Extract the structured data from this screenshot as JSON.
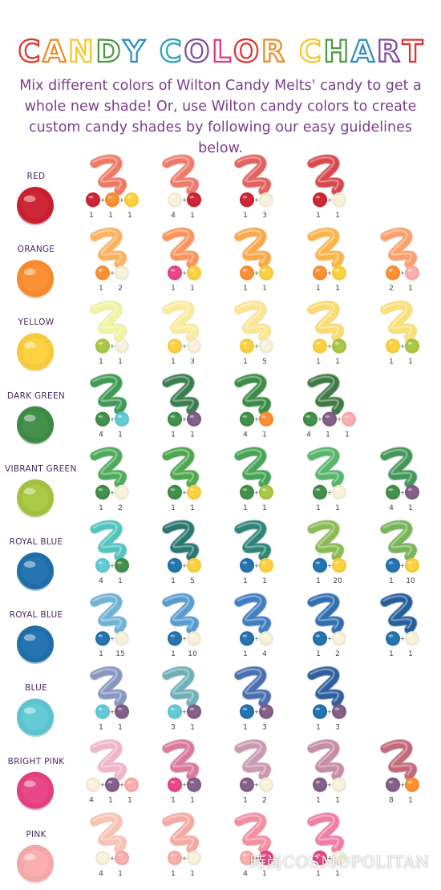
{
  "title": {
    "words": [
      "CANDY",
      "COLOR",
      "CHART"
    ],
    "letter_colors": [
      "#e2312f",
      "#f08a23",
      "#f5c62a",
      "#4a9a42",
      "#2d8cc4",
      "#27a5b8",
      "#7d4e9e",
      "#e6347d",
      "#e2312f",
      "#f08a23",
      "#f5c62a",
      "#4a9a42",
      "#2d8cc4",
      "#7d4e9e"
    ]
  },
  "subtitle": "Mix different colors of Wilton Candy Melts' candy to get a whole new shade! Or, use Wilton candy colors to create custom candy shades by following our easy guidelines below.",
  "colors": {
    "red": "#c8202f",
    "orange": "#f58a2e",
    "yellow": "#f8c93b",
    "cream": "#f1ead2",
    "dkgreen": "#3d8a45",
    "vgreen": "#a2c23f",
    "royal": "#1f6ea8",
    "blue": "#5cc3cf",
    "purple": "#7d5a80",
    "bpink": "#e0417f",
    "pink": "#f3a7a7"
  },
  "rows": [
    {
      "label": "RED",
      "color": "red",
      "mixes": [
        {
          "swatch": "#ef7a63",
          "ingredients": [
            {
              "color": "red",
              "parts": "1"
            },
            {
              "color": "orange",
              "parts": "1"
            },
            {
              "color": "yellow",
              "parts": "1"
            }
          ]
        },
        {
          "swatch": "#ec7b6b",
          "ingredients": [
            {
              "color": "cream",
              "parts": "4"
            },
            {
              "color": "red",
              "parts": "1"
            }
          ]
        },
        {
          "swatch": "#e4615c",
          "ingredients": [
            {
              "color": "red",
              "parts": "1"
            },
            {
              "color": "cream",
              "parts": "3"
            }
          ]
        },
        {
          "swatch": "#d8474c",
          "ingredients": [
            {
              "color": "red",
              "parts": "1"
            },
            {
              "color": "cream",
              "parts": "1"
            }
          ]
        }
      ]
    },
    {
      "label": "ORANGE",
      "color": "orange",
      "mixes": [
        {
          "swatch": "#fbb15e",
          "ingredients": [
            {
              "color": "orange",
              "parts": "1"
            },
            {
              "color": "cream",
              "parts": "2"
            }
          ]
        },
        {
          "swatch": "#f8955a",
          "ingredients": [
            {
              "color": "bpink",
              "parts": "1"
            },
            {
              "color": "yellow",
              "parts": "1"
            }
          ]
        },
        {
          "swatch": "#f9a94a",
          "ingredients": [
            {
              "color": "orange",
              "parts": "1"
            },
            {
              "color": "yellow",
              "parts": "1"
            }
          ]
        },
        {
          "swatch": "#fab54a",
          "ingredients": [
            {
              "color": "orange",
              "parts": "1"
            },
            {
              "color": "yellow",
              "parts": "1"
            }
          ]
        },
        {
          "swatch": "#f9a06a",
          "ingredients": [
            {
              "color": "orange",
              "parts": "2"
            },
            {
              "color": "pink",
              "parts": "1"
            }
          ]
        }
      ]
    },
    {
      "label": "YELLOW",
      "color": "yellow",
      "mixes": [
        {
          "swatch": "#f1f3a1",
          "ingredients": [
            {
              "color": "vgreen",
              "parts": "1"
            },
            {
              "color": "cream",
              "parts": "1"
            }
          ]
        },
        {
          "swatch": "#fbeb9c",
          "ingredients": [
            {
              "color": "yellow",
              "parts": "1"
            },
            {
              "color": "cream",
              "parts": "3"
            }
          ]
        },
        {
          "swatch": "#fbe692",
          "ingredients": [
            {
              "color": "yellow",
              "parts": "1"
            },
            {
              "color": "cream",
              "parts": "5"
            }
          ]
        },
        {
          "swatch": "#f9dc71",
          "ingredients": [
            {
              "color": "yellow",
              "parts": "1"
            },
            {
              "color": "vgreen",
              "parts": "1"
            }
          ]
        },
        {
          "swatch": "#f9e178",
          "ingredients": [
            {
              "color": "yellow",
              "parts": "1"
            },
            {
              "color": "vgreen",
              "parts": "1"
            }
          ]
        }
      ]
    },
    {
      "label": "DARK GREEN",
      "color": "dkgreen",
      "mixes": [
        {
          "swatch": "#3f9a55",
          "ingredients": [
            {
              "color": "dkgreen",
              "parts": "4"
            },
            {
              "color": "blue",
              "parts": "1"
            }
          ]
        },
        {
          "swatch": "#3a7d4f",
          "ingredients": [
            {
              "color": "dkgreen",
              "parts": "1"
            },
            {
              "color": "purple",
              "parts": "1"
            }
          ]
        },
        {
          "swatch": "#3b8c46",
          "ingredients": [
            {
              "color": "dkgreen",
              "parts": "4"
            },
            {
              "color": "orange",
              "parts": "1"
            }
          ]
        },
        {
          "swatch": "#3f7a44",
          "ingredients": [
            {
              "color": "dkgreen",
              "parts": "4"
            },
            {
              "color": "purple",
              "parts": "1"
            },
            {
              "color": "pink",
              "parts": "1"
            }
          ]
        }
      ]
    },
    {
      "label": "VIBRANT GREEN",
      "color": "vgreen",
      "mixes": [
        {
          "swatch": "#4faa5a",
          "ingredients": [
            {
              "color": "dkgreen",
              "parts": "1"
            },
            {
              "color": "cream",
              "parts": "2"
            }
          ]
        },
        {
          "swatch": "#4ea74c",
          "ingredients": [
            {
              "color": "dkgreen",
              "parts": "1"
            },
            {
              "color": "yellow",
              "parts": "1"
            }
          ]
        },
        {
          "swatch": "#46a456",
          "ingredients": [
            {
              "color": "dkgreen",
              "parts": "1"
            },
            {
              "color": "vgreen",
              "parts": "1"
            }
          ]
        },
        {
          "swatch": "#57b56c",
          "ingredients": [
            {
              "color": "dkgreen",
              "parts": "1"
            },
            {
              "color": "cream",
              "parts": "1"
            }
          ]
        },
        {
          "swatch": "#44975a",
          "ingredients": [
            {
              "color": "dkgreen",
              "parts": "4"
            },
            {
              "color": "purple",
              "parts": "1"
            }
          ]
        }
      ]
    },
    {
      "label": "ROYAL BLUE",
      "color": "royal",
      "mixes": [
        {
          "swatch": "#52c4bd",
          "ingredients": [
            {
              "color": "blue",
              "parts": "4"
            },
            {
              "color": "dkgreen",
              "parts": "1"
            }
          ]
        },
        {
          "swatch": "#2a7670",
          "ingredients": [
            {
              "color": "royal",
              "parts": "1"
            },
            {
              "color": "yellow",
              "parts": "5"
            }
          ]
        },
        {
          "swatch": "#2d8577",
          "ingredients": [
            {
              "color": "royal",
              "parts": "1"
            },
            {
              "color": "yellow",
              "parts": "1"
            }
          ]
        },
        {
          "swatch": "#8bbb55",
          "ingredients": [
            {
              "color": "royal",
              "parts": "1"
            },
            {
              "color": "yellow",
              "parts": "20"
            }
          ]
        },
        {
          "swatch": "#78b45a",
          "ingredients": [
            {
              "color": "royal",
              "parts": "1"
            },
            {
              "color": "yellow",
              "parts": "10"
            }
          ]
        }
      ]
    },
    {
      "label": "ROYAL BLUE",
      "color": "royal",
      "mixes": [
        {
          "swatch": "#6fb2d6",
          "ingredients": [
            {
              "color": "royal",
              "parts": "1"
            },
            {
              "color": "cream",
              "parts": "15"
            }
          ]
        },
        {
          "swatch": "#5a9ccf",
          "ingredients": [
            {
              "color": "royal",
              "parts": "1"
            },
            {
              "color": "cream",
              "parts": "10"
            }
          ]
        },
        {
          "swatch": "#3f7ec0",
          "ingredients": [
            {
              "color": "royal",
              "parts": "1"
            },
            {
              "color": "cream",
              "parts": "4"
            }
          ]
        },
        {
          "swatch": "#2f6fb0",
          "ingredients": [
            {
              "color": "royal",
              "parts": "1"
            },
            {
              "color": "cream",
              "parts": "2"
            }
          ]
        },
        {
          "swatch": "#245f9c",
          "ingredients": [
            {
              "color": "royal",
              "parts": "1"
            },
            {
              "color": "cream",
              "parts": "1"
            }
          ]
        }
      ]
    },
    {
      "label": "BLUE",
      "color": "blue",
      "mixes": [
        {
          "swatch": "#8797c2",
          "ingredients": [
            {
              "color": "blue",
              "parts": "1"
            },
            {
              "color": "purple",
              "parts": "1"
            }
          ]
        },
        {
          "swatch": "#6fb0b8",
          "ingredients": [
            {
              "color": "blue",
              "parts": "3"
            },
            {
              "color": "purple",
              "parts": "1"
            }
          ]
        },
        {
          "swatch": "#4a6fb0",
          "ingredients": [
            {
              "color": "royal",
              "parts": "1"
            },
            {
              "color": "purple",
              "parts": "3"
            }
          ]
        },
        {
          "swatch": "#2f5f9e",
          "ingredients": [
            {
              "color": "royal",
              "parts": "1"
            },
            {
              "color": "purple",
              "parts": "3"
            }
          ]
        }
      ]
    },
    {
      "label": "BRIGHT PINK",
      "color": "bpink",
      "mixes": [
        {
          "swatch": "#f1b6c8",
          "ingredients": [
            {
              "color": "cream",
              "parts": "4"
            },
            {
              "color": "purple",
              "parts": "1"
            },
            {
              "color": "pink",
              "parts": "1"
            }
          ]
        },
        {
          "swatch": "#d9799c",
          "ingredients": [
            {
              "color": "bpink",
              "parts": "1"
            },
            {
              "color": "purple",
              "parts": "1"
            }
          ]
        },
        {
          "swatch": "#c99ab2",
          "ingredients": [
            {
              "color": "purple",
              "parts": "1"
            },
            {
              "color": "cream",
              "parts": "2"
            }
          ]
        },
        {
          "swatch": "#c68ba5",
          "ingredients": [
            {
              "color": "purple",
              "parts": "1"
            },
            {
              "color": "cream",
              "parts": "1"
            }
          ]
        },
        {
          "swatch": "#c26a7a",
          "ingredients": [
            {
              "color": "purple",
              "parts": "8"
            },
            {
              "color": "orange",
              "parts": "1"
            }
          ]
        }
      ]
    },
    {
      "label": "PINK",
      "color": "pink",
      "mixes": [
        {
          "swatch": "#f8c3b5",
          "ingredients": [
            {
              "color": "cream",
              "parts": "4"
            },
            {
              "color": "pink",
              "parts": "1"
            }
          ]
        },
        {
          "swatch": "#f4a9a4",
          "ingredients": [
            {
              "color": "pink",
              "parts": "1"
            },
            {
              "color": "cream",
              "parts": "1"
            }
          ]
        },
        {
          "swatch": "#f38fa3",
          "ingredients": [
            {
              "color": "pink",
              "parts": "4"
            },
            {
              "color": "bpink",
              "parts": "1"
            }
          ]
        },
        {
          "swatch": "#ee7ea6",
          "ingredients": [
            {
              "color": "bpink",
              "parts": "1"
            },
            {
              "color": "cream",
              "parts": "1"
            }
          ]
        }
      ]
    }
  ],
  "watermark": "時尚COSMOPOLITAN"
}
